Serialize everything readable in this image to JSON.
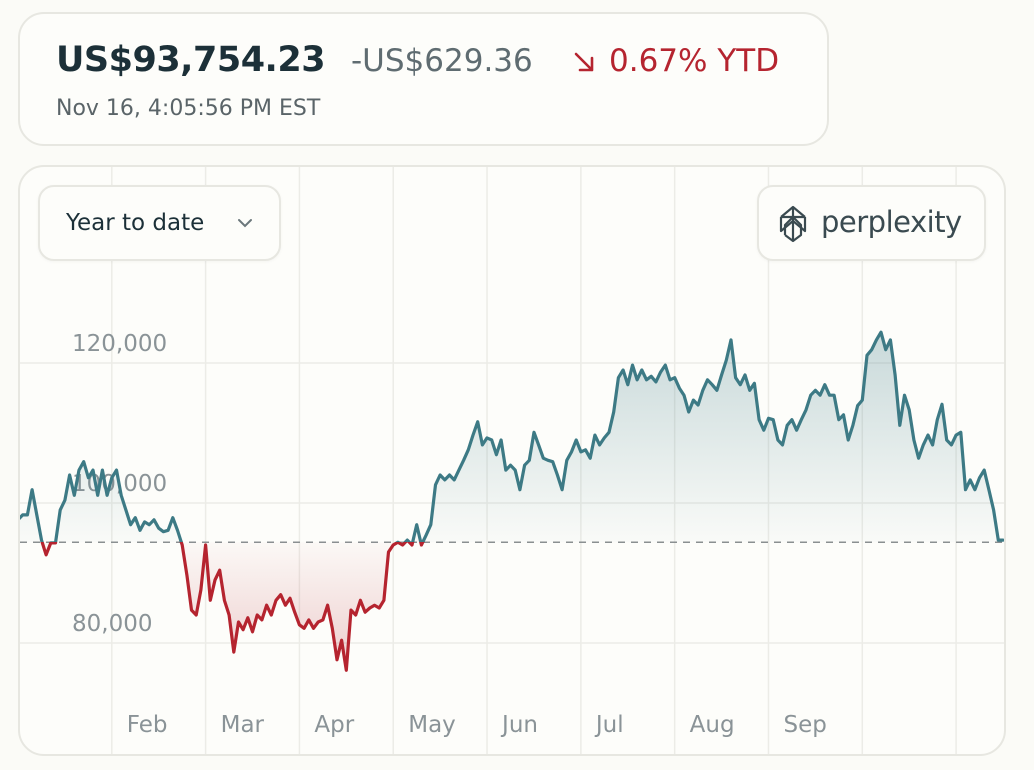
{
  "header": {
    "price": "US$93,754.23",
    "change": "-US$629.36",
    "change_percent": "0.67% YTD",
    "timestamp": "Nov 16, 4:05:56 PM EST"
  },
  "controls": {
    "range": "Year to date",
    "brand": "perplexity"
  },
  "chart_data": {
    "type": "area",
    "x_ticks": [
      "Feb",
      "Mar",
      "Apr",
      "May",
      "Jun",
      "Jul",
      "Aug",
      "Sep",
      null,
      null
    ],
    "baseline": 94400,
    "up_color": "#3d7a85",
    "down_color": "#b5242f",
    "ylim": [
      65000,
      135000
    ],
    "yticks": [
      {
        "value": 80000,
        "label": "80,000"
      },
      {
        "value": 100000,
        "label": "100,000"
      },
      {
        "value": 120000,
        "label": "120,000"
      }
    ],
    "grid": true,
    "values": [
      97600,
      98300,
      98300,
      101900,
      98300,
      94700,
      92600,
      94300,
      94300,
      99000,
      100400,
      104000,
      101100,
      104700,
      105900,
      103600,
      104700,
      101100,
      104700,
      101100,
      103600,
      104700,
      101100,
      99000,
      96900,
      97900,
      96100,
      97300,
      96900,
      97600,
      96400,
      95900,
      96100,
      97900,
      96100,
      94000,
      89700,
      84700,
      84000,
      87600,
      94000,
      86100,
      89000,
      90400,
      86100,
      84000,
      78700,
      83000,
      81900,
      83600,
      81600,
      84000,
      83300,
      85400,
      84000,
      86100,
      86900,
      85400,
      86400,
      84400,
      82600,
      82100,
      83300,
      82100,
      83000,
      83300,
      85400,
      82100,
      77600,
      80400,
      76100,
      84700,
      84000,
      86100,
      84400,
      85000,
      85400,
      85000,
      86100,
      93000,
      94000,
      94400,
      94000,
      94700,
      94000,
      96900,
      94000,
      95400,
      96900,
      102600,
      104000,
      103300,
      104000,
      103300,
      104700,
      106100,
      107600,
      109700,
      111600,
      108300,
      109300,
      109000,
      106900,
      109000,
      104700,
      105400,
      104700,
      101900,
      105400,
      106100,
      110100,
      108300,
      106400,
      106100,
      105900,
      104000,
      101900,
      106100,
      107300,
      109000,
      107300,
      107600,
      106400,
      109700,
      108300,
      109300,
      110100,
      113000,
      117900,
      119000,
      116900,
      119700,
      117600,
      119000,
      117600,
      118100,
      117300,
      118700,
      119700,
      117600,
      117900,
      116400,
      115400,
      113000,
      114700,
      114000,
      116100,
      117600,
      116900,
      116100,
      118300,
      120400,
      123300,
      117900,
      116900,
      118300,
      116100,
      117100,
      111900,
      110400,
      112100,
      111900,
      109000,
      108300,
      111100,
      111900,
      110400,
      111900,
      113300,
      115400,
      116100,
      115400,
      116900,
      115400,
      115400,
      111900,
      112600,
      109000,
      111100,
      113900,
      114700,
      121100,
      121900,
      123300,
      124400,
      121900,
      123300,
      118300,
      111100,
      115400,
      113300,
      109000,
      106400,
      108300,
      109700,
      108300,
      111900,
      114100,
      109000,
      108300,
      109700,
      110100,
      101900,
      103300,
      101900,
      103600,
      104700,
      101900,
      99000,
      94700,
      94700
    ]
  }
}
